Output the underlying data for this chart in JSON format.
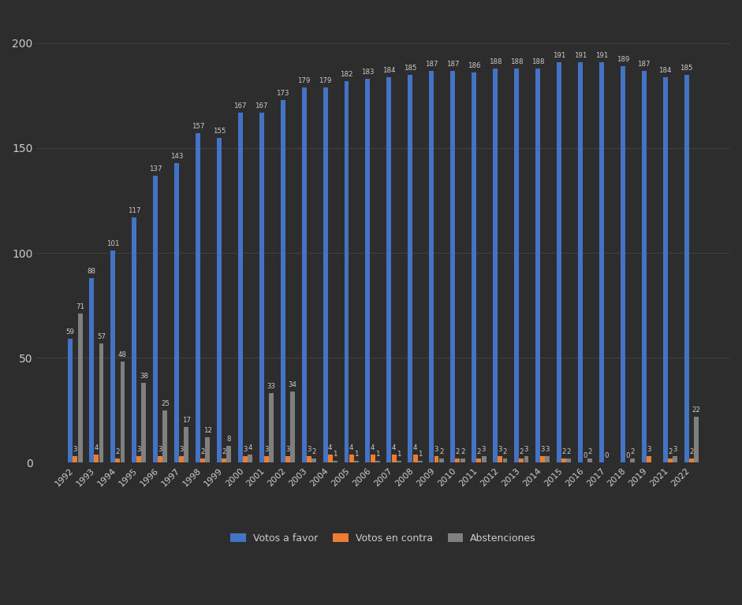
{
  "years": [
    "1992",
    "1993",
    "1994",
    "1995",
    "1996",
    "1997",
    "1998",
    "1999",
    "2000",
    "2001",
    "2002",
    "2003",
    "2004",
    "2005",
    "2006",
    "2007",
    "2008",
    "2009",
    "2010",
    "2011",
    "2012",
    "2013",
    "2014",
    "2015",
    "2016",
    "2017",
    "2018",
    "2019",
    "2021",
    "2022"
  ],
  "favor": [
    59,
    88,
    101,
    117,
    137,
    143,
    157,
    155,
    167,
    167,
    173,
    179,
    179,
    182,
    183,
    184,
    185,
    187,
    187,
    186,
    188,
    188,
    188,
    191,
    191,
    191,
    189,
    187,
    184,
    185
  ],
  "contra": [
    3,
    4,
    2,
    3,
    3,
    3,
    2,
    2,
    3,
    3,
    3,
    3,
    4,
    4,
    4,
    4,
    4,
    3,
    2,
    2,
    3,
    2,
    3,
    2,
    0,
    0,
    0,
    3,
    2,
    2
  ],
  "abstenciones": [
    71,
    57,
    48,
    38,
    25,
    17,
    12,
    8,
    4,
    33,
    34,
    2,
    1,
    1,
    1,
    1,
    1,
    2,
    2,
    3,
    2,
    3,
    3,
    2,
    2,
    0,
    2,
    0,
    3,
    22
  ],
  "color_favor": "#4472c4",
  "color_contra": "#ed7d31",
  "color_abstenciones": "#808080",
  "background_color": "#2d2d2d",
  "grid_color": "#555555",
  "text_color": "#cccccc",
  "legend_favor": "Votos a favor",
  "legend_contra": "Votos en contra",
  "legend_abstenciones": "Abstenciones",
  "ylim": [
    0,
    215
  ],
  "yticks": [
    0,
    50,
    100,
    150,
    200
  ]
}
